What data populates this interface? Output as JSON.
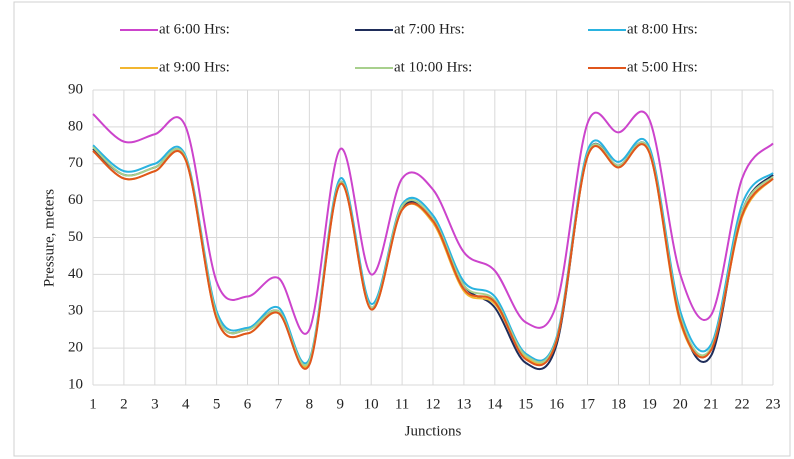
{
  "chart_data": {
    "type": "line",
    "x_label": "Junctions",
    "y_label": "Pressure, meters",
    "x": [
      1,
      2,
      3,
      4,
      5,
      6,
      7,
      8,
      9,
      10,
      11,
      12,
      13,
      14,
      15,
      16,
      17,
      18,
      19,
      20,
      21,
      22,
      23
    ],
    "xlim": [
      1,
      23
    ],
    "xticks": [
      1,
      2,
      3,
      4,
      5,
      6,
      7,
      8,
      9,
      10,
      11,
      12,
      13,
      14,
      15,
      16,
      17,
      18,
      19,
      20,
      21,
      22,
      23
    ],
    "ylim": [
      10,
      90
    ],
    "yticks": [
      10,
      20,
      30,
      40,
      50,
      60,
      70,
      80,
      90
    ],
    "grid": true,
    "series": [
      {
        "name": "at 6:00 Hrs:",
        "color": "#cc44cc",
        "values": [
          83.5,
          76,
          78,
          80,
          38,
          34,
          39,
          25,
          74,
          40,
          66,
          63,
          46,
          41,
          27,
          32,
          81,
          78.5,
          82,
          40,
          29,
          66,
          75.5
        ]
      },
      {
        "name": "at 7:00 Hrs:",
        "color": "#1f2d5a",
        "values": [
          74,
          67,
          69,
          71.5,
          29,
          25,
          30,
          16,
          65,
          31,
          58,
          55,
          37,
          31,
          16,
          21,
          72.5,
          69.5,
          73.5,
          28,
          18,
          57,
          67
        ]
      },
      {
        "name": "at 8:00 Hrs:",
        "color": "#2ab3e0",
        "values": [
          75,
          68,
          70,
          72,
          30,
          25.5,
          31,
          17,
          66,
          32,
          59,
          56,
          38,
          34,
          18.5,
          23,
          73.5,
          70.5,
          74.5,
          30,
          21,
          59,
          67.5
        ]
      },
      {
        "name": "at 9:00 Hrs:",
        "color": "#f2b630",
        "values": [
          73.5,
          66,
          68,
          71,
          28,
          24,
          29.5,
          16,
          64.5,
          30.5,
          57.5,
          54,
          35.5,
          32,
          17.5,
          22,
          72,
          69,
          73,
          27,
          20,
          55.5,
          66
        ]
      },
      {
        "name": "at 10:00 Hrs:",
        "color": "#a8d08d",
        "values": [
          74.5,
          67,
          69,
          71.5,
          29,
          25,
          30,
          16.5,
          65,
          31,
          58.5,
          55,
          37,
          33,
          18,
          22.5,
          72.5,
          69.5,
          73.5,
          28.5,
          20,
          57,
          66.5
        ]
      },
      {
        "name": "at 5:00 Hrs:",
        "color": "#e0561c",
        "values": [
          73.5,
          66,
          68,
          71,
          28,
          24,
          29.5,
          15.5,
          64.5,
          30.5,
          57.5,
          54.5,
          36,
          32.5,
          17,
          22,
          72,
          69,
          73,
          27.5,
          19.5,
          56,
          66
        ]
      }
    ]
  }
}
